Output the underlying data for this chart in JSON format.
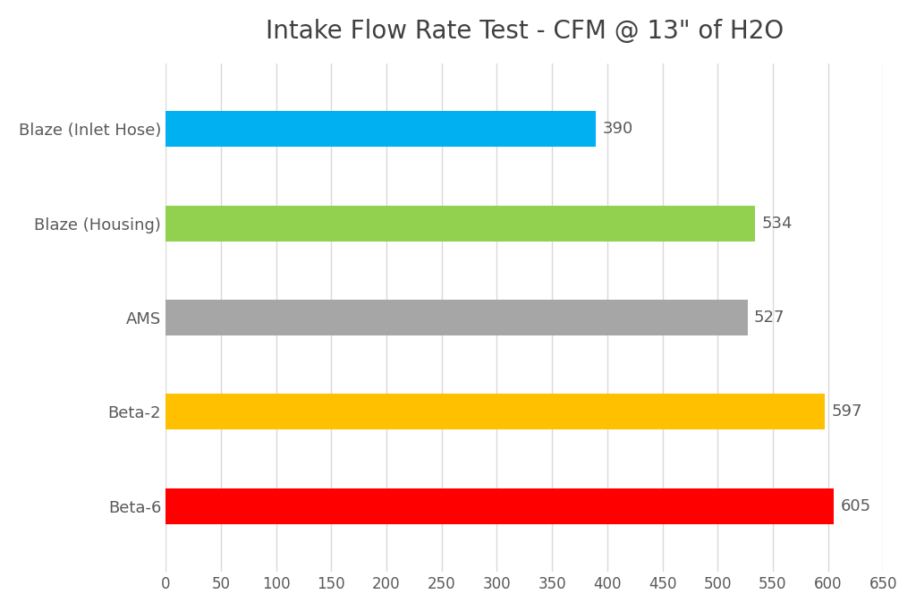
{
  "title": "Intake Flow Rate Test - CFM @ 13\" of H2O",
  "categories": [
    "Beta-6",
    "Beta-2",
    "AMS",
    "Blaze (Housing)",
    "Blaze (Inlet Hose)"
  ],
  "values": [
    605,
    597,
    527,
    534,
    390
  ],
  "colors": [
    "#ff0000",
    "#ffc000",
    "#a6a6a6",
    "#92d050",
    "#00b0f0"
  ],
  "xlim": [
    0,
    650
  ],
  "xticks": [
    0,
    50,
    100,
    150,
    200,
    250,
    300,
    350,
    400,
    450,
    500,
    550,
    600,
    650
  ],
  "bar_height": 0.38,
  "background_color": "#ffffff",
  "plot_bg_color": "#ffffff",
  "title_fontsize": 20,
  "label_fontsize": 13,
  "tick_fontsize": 12,
  "value_fontsize": 13,
  "value_label_color": "#595959",
  "grid_color": "#d9d9d9",
  "ylabel_color": "#595959"
}
